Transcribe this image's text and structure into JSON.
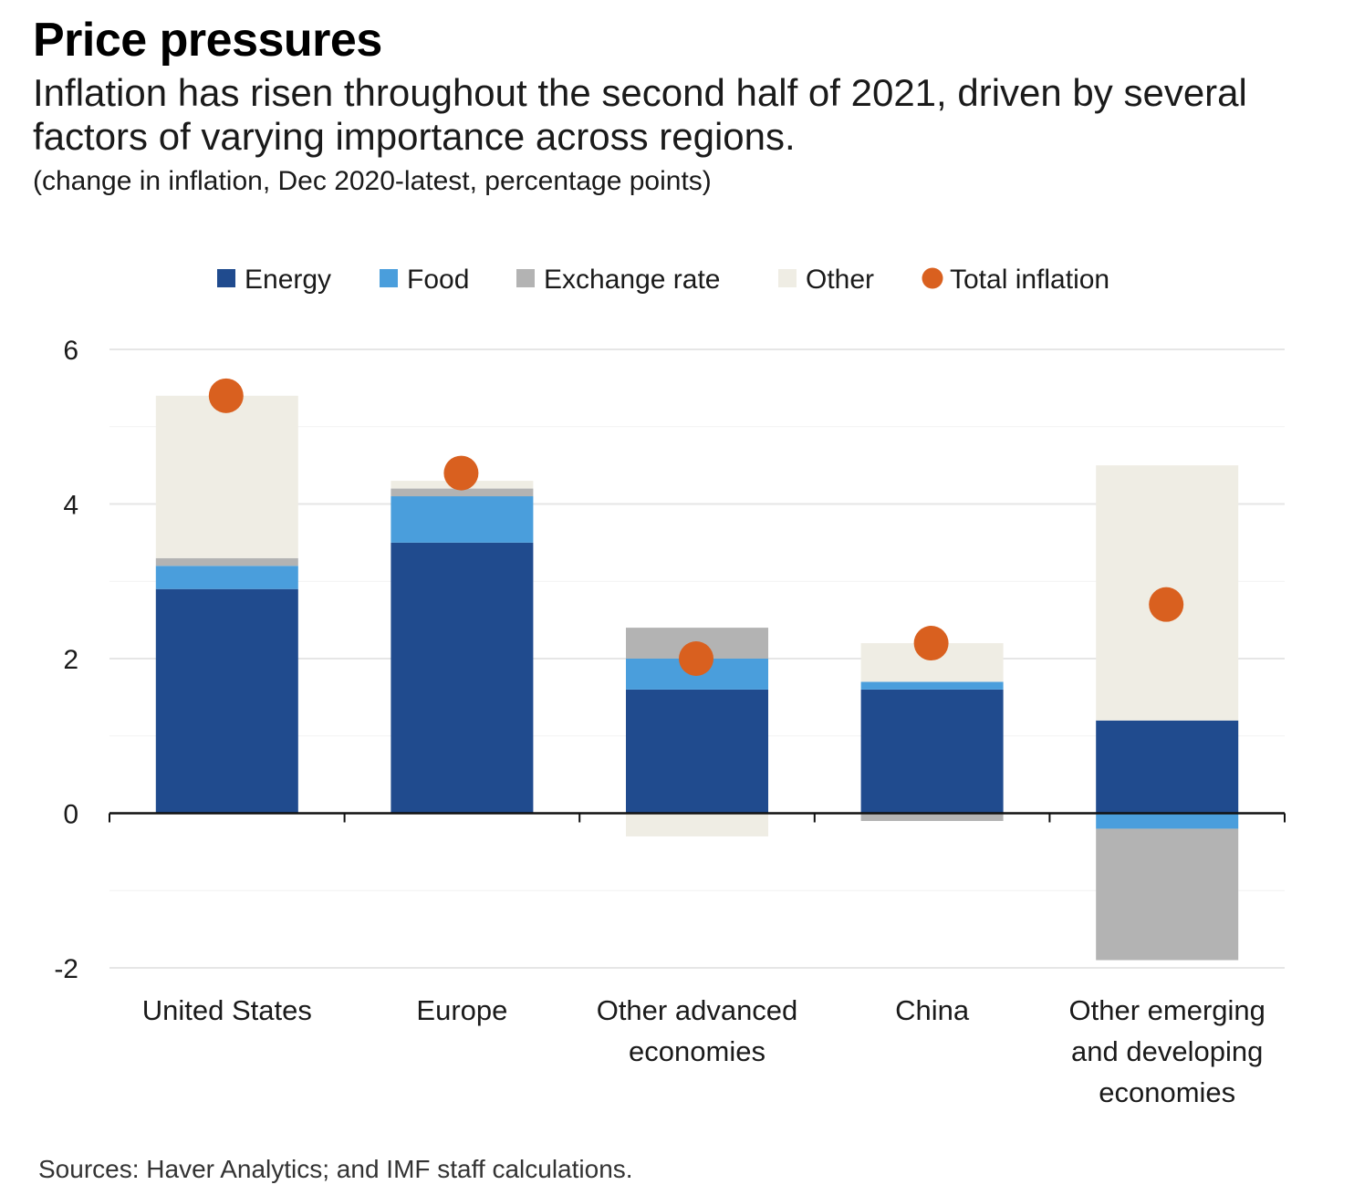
{
  "title": "Price pressures",
  "subtitle": "Inflation has risen throughout the second half of 2021, driven by several factors of varying importance across regions.",
  "units_note": "(change in inflation, Dec 2020-latest, percentage points)",
  "source": "Sources: Haver Analytics; and IMF staff calculations.",
  "chart_data": {
    "type": "bar",
    "stacked": true,
    "categories": [
      [
        "United States"
      ],
      [
        "Europe"
      ],
      [
        "Other advanced",
        "economies"
      ],
      [
        "China"
      ],
      [
        "Other emerging",
        "and developing",
        "economies"
      ]
    ],
    "series": [
      {
        "name": "Energy",
        "color": "#204b8e",
        "values": [
          2.9,
          3.5,
          1.6,
          1.6,
          1.2
        ]
      },
      {
        "name": "Food",
        "color": "#4a9edc",
        "values": [
          0.3,
          0.6,
          0.4,
          0.1,
          -0.2
        ]
      },
      {
        "name": "Exchange rate",
        "color": "#b3b3b3",
        "values": [
          0.1,
          0.1,
          0.4,
          -0.1,
          -1.7
        ]
      },
      {
        "name": "Other",
        "color": "#efede4",
        "values": [
          2.1,
          0.1,
          -0.3,
          0.5,
          3.3
        ]
      }
    ],
    "total": {
      "name": "Total inflation",
      "color": "#d9601f",
      "values": [
        5.4,
        4.4,
        2.0,
        2.2,
        2.7
      ]
    },
    "ylim": [
      -2,
      6
    ],
    "yticks": [
      "6",
      "4",
      "2",
      "0",
      "-2"
    ],
    "ytick_values": [
      6,
      4,
      2,
      0,
      -2
    ],
    "grid": true,
    "legend_position": "top"
  }
}
